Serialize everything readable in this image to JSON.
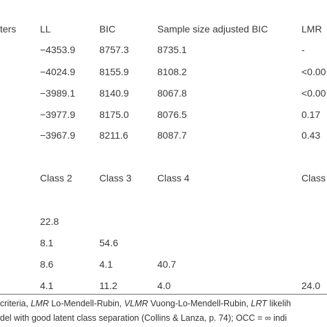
{
  "header": {
    "col_params": "ters",
    "col_ll": "LL",
    "col_bic": "BIC",
    "col_sabic": "Sample size adjusted BIC",
    "col_lmr": "LMR"
  },
  "fit_rows": [
    {
      "ll": "−4353.9",
      "bic": "8757.3",
      "sabic": "8735.1",
      "lmr": "-"
    },
    {
      "ll": "−4024.9",
      "bic": "8155.9",
      "sabic": "8108.2",
      "lmr": "<0.00"
    },
    {
      "ll": "−3989.1",
      "bic": "8140.9",
      "sabic": "8067.8",
      "lmr": "<0.00"
    },
    {
      "ll": "−3977.9",
      "bic": "8175.0",
      "sabic": "8076.5",
      "lmr": "0.17"
    },
    {
      "ll": "−3967.9",
      "bic": "8211.6",
      "sabic": "8087.7",
      "lmr": "0.43"
    }
  ],
  "class_header": {
    "c2": "Class 2",
    "c3": "Class 3",
    "c4": "Class 4",
    "c5": "Class"
  },
  "class_rows": [
    {
      "c2": "22.8",
      "c3": "",
      "c4": "",
      "c5": ""
    },
    {
      "c2": "8.1",
      "c3": "54.6",
      "c4": "",
      "c5": ""
    },
    {
      "c2": "8.6",
      "c3": "4.1",
      "c4": "40.7",
      "c5": ""
    },
    {
      "c2": "4.1",
      "c3": "11.2",
      "c4": "4.0",
      "c5": "24.0"
    }
  ],
  "footnote": {
    "l1_a": "criteria, ",
    "l1_b": "LMR",
    "l1_c": " Lo-Mendell-Rubin, ",
    "l1_d": "VLMR",
    "l1_e": " Vuong-Lo-Mendell-Rubin, ",
    "l1_f": "LRT",
    "l1_g": " likelih",
    "l2": "del with good latent class separation (Collins & Lanza, p. 74); OCC = ∞ indi"
  }
}
